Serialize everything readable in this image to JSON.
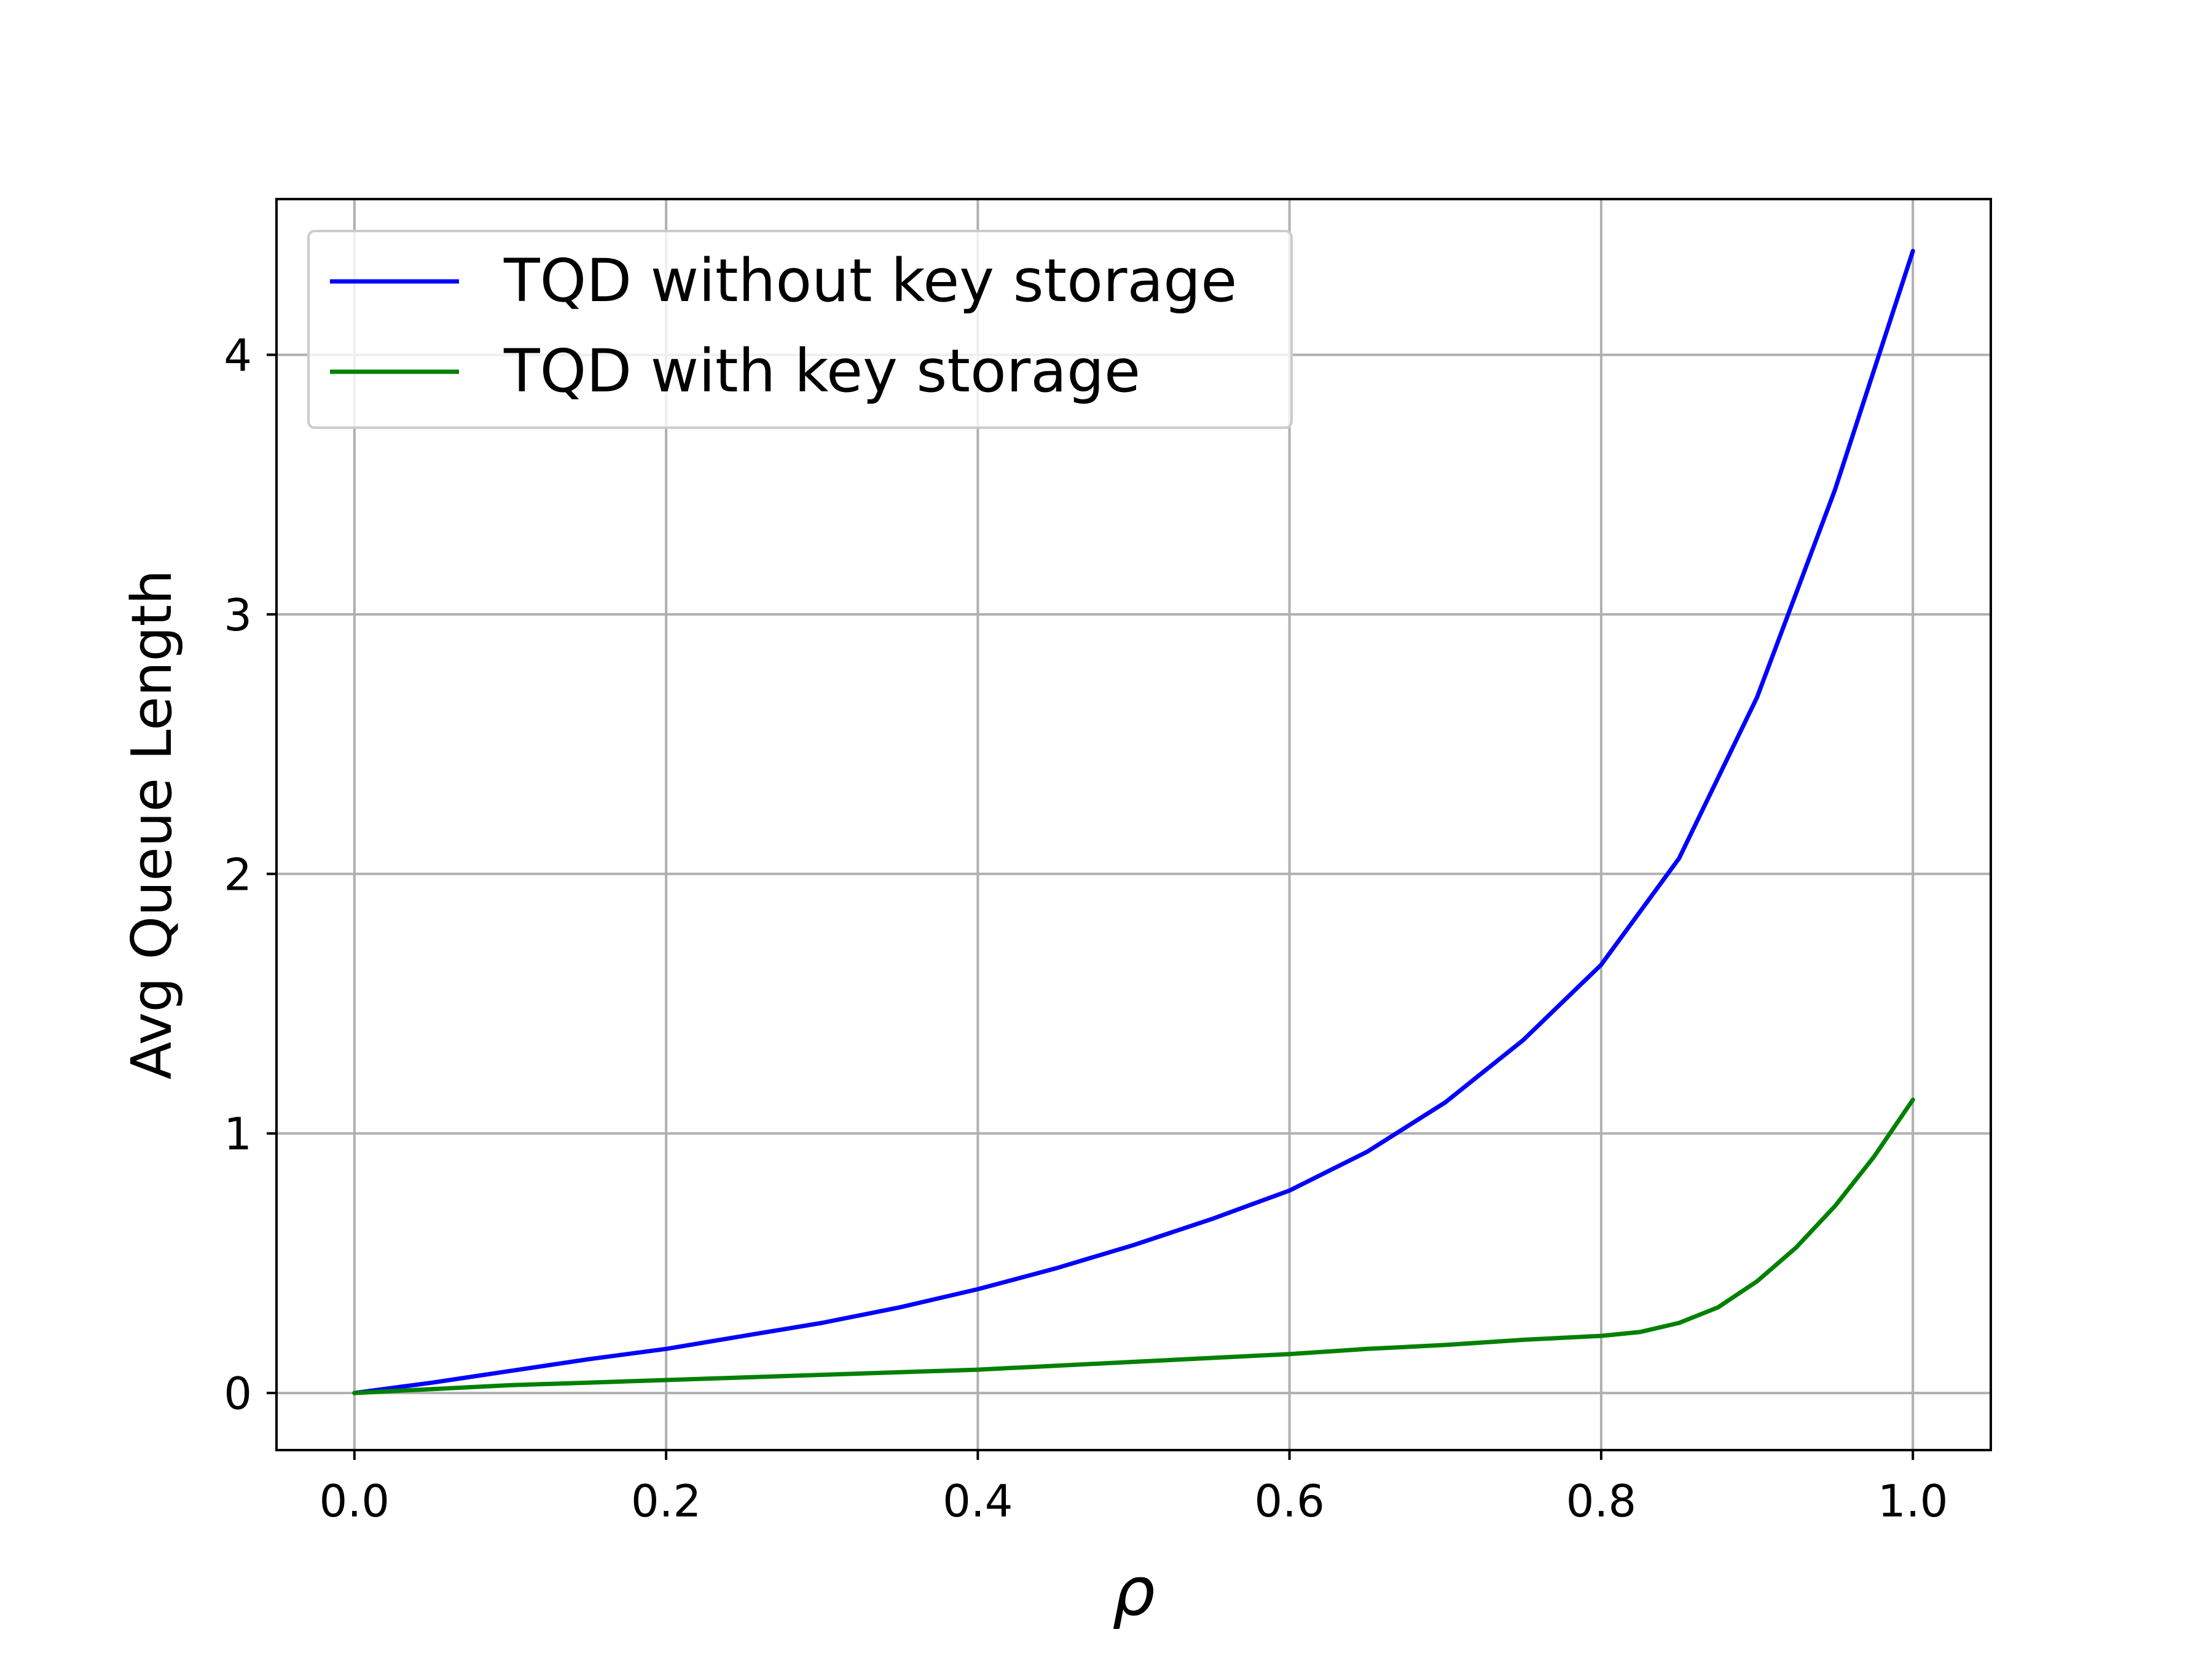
{
  "chart_data": {
    "type": "line",
    "title": "",
    "xlabel": "ρ",
    "ylabel": "Avg Queue Length",
    "xlim": [
      -0.05,
      1.05
    ],
    "ylim": [
      -0.22,
      4.6
    ],
    "xticks": [
      0.0,
      0.2,
      0.4,
      0.6,
      0.8,
      1.0
    ],
    "xtick_labels": [
      "0.0",
      "0.2",
      "0.4",
      "0.6",
      "0.8",
      "1.0"
    ],
    "yticks": [
      0,
      1,
      2,
      3,
      4
    ],
    "ytick_labels": [
      "0",
      "1",
      "2",
      "3",
      "4"
    ],
    "grid": true,
    "legend_position": "upper-left",
    "series": [
      {
        "name": "TQD without key storage",
        "color": "#0000ff",
        "x": [
          0.0,
          0.05,
          0.1,
          0.15,
          0.2,
          0.25,
          0.3,
          0.35,
          0.4,
          0.45,
          0.5,
          0.55,
          0.6,
          0.65,
          0.7,
          0.75,
          0.8,
          0.85,
          0.9,
          0.95,
          1.0
        ],
        "y": [
          0.0,
          0.04,
          0.085,
          0.13,
          0.17,
          0.22,
          0.27,
          0.33,
          0.4,
          0.48,
          0.57,
          0.67,
          0.78,
          0.93,
          1.12,
          1.36,
          1.65,
          2.06,
          2.68,
          3.48,
          4.4
        ]
      },
      {
        "name": "TQD with key storage",
        "color": "#008000",
        "x": [
          0.0,
          0.05,
          0.1,
          0.15,
          0.2,
          0.25,
          0.3,
          0.35,
          0.4,
          0.45,
          0.5,
          0.55,
          0.6,
          0.65,
          0.7,
          0.75,
          0.8,
          0.825,
          0.85,
          0.875,
          0.9,
          0.925,
          0.95,
          0.975,
          1.0
        ],
        "y": [
          0.0,
          0.015,
          0.03,
          0.04,
          0.05,
          0.06,
          0.07,
          0.08,
          0.09,
          0.105,
          0.12,
          0.135,
          0.15,
          0.17,
          0.185,
          0.205,
          0.22,
          0.235,
          0.27,
          0.33,
          0.43,
          0.56,
          0.72,
          0.91,
          1.13
        ]
      }
    ]
  }
}
